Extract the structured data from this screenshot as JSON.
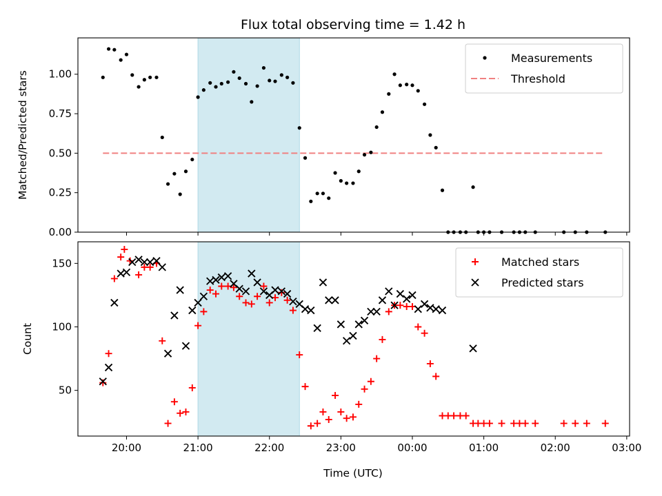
{
  "figure": {
    "title": "Flux total observing time = 1.42 h",
    "xlabel": "Time (UTC)"
  },
  "colors": {
    "shade": "#add8e6",
    "measurement": "#000000",
    "threshold": "#f08080",
    "matched": "#ff0000",
    "predicted": "#000000"
  },
  "chart_data": [
    {
      "type": "scatter",
      "ylabel": "Matched/Predicted stars",
      "x_unit": "hours since 19:00 UTC",
      "xlim": [
        0.32,
        8.04
      ],
      "ylim": [
        0.0,
        1.23
      ],
      "yticks": [
        0.0,
        0.25,
        0.5,
        0.75,
        1.0
      ],
      "ytick_labels": [
        "0.00",
        "0.25",
        "0.50",
        "0.75",
        "1.00"
      ],
      "shaded_span": [
        "21:00",
        "22:25"
      ],
      "shaded_span_hours": [
        2.0,
        3.42
      ],
      "legend": {
        "position": "upper right",
        "entries": [
          "Measurements",
          "Threshold"
        ]
      },
      "threshold": {
        "name": "Threshold",
        "y": 0.5,
        "x_range": [
          0.67,
          7.67
        ]
      },
      "series": [
        {
          "name": "Measurements",
          "points": [
            [
              0.67,
              0.98
            ],
            [
              0.75,
              1.16
            ],
            [
              0.83,
              1.155
            ],
            [
              0.92,
              1.09
            ],
            [
              1.0,
              1.125
            ],
            [
              1.08,
              0.995
            ],
            [
              1.17,
              0.92
            ],
            [
              1.25,
              0.965
            ],
            [
              1.33,
              0.98
            ],
            [
              1.42,
              0.98
            ],
            [
              1.5,
              0.6
            ],
            [
              1.58,
              0.305
            ],
            [
              1.67,
              0.37
            ],
            [
              1.75,
              0.24
            ],
            [
              1.83,
              0.385
            ],
            [
              1.92,
              0.46
            ],
            [
              2.0,
              0.855
            ],
            [
              2.08,
              0.9
            ],
            [
              2.17,
              0.945
            ],
            [
              2.25,
              0.92
            ],
            [
              2.33,
              0.94
            ],
            [
              2.42,
              0.95
            ],
            [
              2.5,
              1.015
            ],
            [
              2.58,
              0.975
            ],
            [
              2.67,
              0.94
            ],
            [
              2.75,
              0.825
            ],
            [
              2.83,
              0.925
            ],
            [
              2.92,
              1.04
            ],
            [
              3.0,
              0.96
            ],
            [
              3.08,
              0.955
            ],
            [
              3.17,
              0.995
            ],
            [
              3.25,
              0.98
            ],
            [
              3.33,
              0.945
            ],
            [
              3.42,
              0.66
            ],
            [
              3.5,
              0.47
            ],
            [
              3.58,
              0.195
            ],
            [
              3.67,
              0.245
            ],
            [
              3.75,
              0.245
            ],
            [
              3.83,
              0.215
            ],
            [
              3.92,
              0.375
            ],
            [
              4.0,
              0.325
            ],
            [
              4.08,
              0.31
            ],
            [
              4.17,
              0.31
            ],
            [
              4.25,
              0.385
            ],
            [
              4.33,
              0.49
            ],
            [
              4.42,
              0.505
            ],
            [
              4.5,
              0.665
            ],
            [
              4.58,
              0.76
            ],
            [
              4.67,
              0.875
            ],
            [
              4.75,
              1.0
            ],
            [
              4.83,
              0.93
            ],
            [
              4.92,
              0.935
            ],
            [
              5.0,
              0.93
            ],
            [
              5.08,
              0.895
            ],
            [
              5.17,
              0.81
            ],
            [
              5.25,
              0.615
            ],
            [
              5.33,
              0.535
            ],
            [
              5.42,
              0.265
            ],
            [
              5.5,
              0.0
            ],
            [
              5.58,
              0.0
            ],
            [
              5.67,
              0.0
            ],
            [
              5.75,
              0.0
            ],
            [
              5.85,
              0.285
            ],
            [
              5.92,
              0.0
            ],
            [
              6.0,
              0.0
            ],
            [
              6.08,
              0.0
            ],
            [
              6.25,
              0.0
            ],
            [
              6.42,
              0.0
            ],
            [
              6.5,
              0.0
            ],
            [
              6.58,
              0.0
            ],
            [
              6.72,
              0.0
            ],
            [
              7.12,
              0.0
            ],
            [
              7.28,
              0.0
            ],
            [
              7.44,
              0.0
            ],
            [
              7.7,
              0.0
            ]
          ]
        }
      ]
    },
    {
      "type": "scatter",
      "ylabel": "Count",
      "xlabel": "Time (UTC)",
      "x_unit": "hours since 19:00 UTC",
      "xlim": [
        0.32,
        8.04
      ],
      "ylim": [
        14,
        167
      ],
      "yticks": [
        50,
        100,
        150
      ],
      "ytick_labels": [
        "50",
        "100",
        "150"
      ],
      "xticks": [
        1,
        2,
        3,
        4,
        5,
        6,
        7,
        8
      ],
      "xtick_labels": [
        "20:00",
        "21:00",
        "22:00",
        "23:00",
        "00:00",
        "01:00",
        "02:00",
        "03:00"
      ],
      "shaded_span": [
        "21:00",
        "22:25"
      ],
      "shaded_span_hours": [
        2.0,
        3.42
      ],
      "legend": {
        "position": "upper right",
        "entries": [
          "Matched stars",
          "Predicted stars"
        ]
      },
      "series": [
        {
          "name": "Matched stars",
          "marker": "+",
          "points": [
            [
              0.67,
              56
            ],
            [
              0.75,
              79
            ],
            [
              0.83,
              138
            ],
            [
              0.92,
              155
            ],
            [
              0.97,
              161
            ],
            [
              1.05,
              152
            ],
            [
              1.17,
              141
            ],
            [
              1.25,
              147
            ],
            [
              1.33,
              147
            ],
            [
              1.42,
              150
            ],
            [
              1.5,
              89
            ],
            [
              1.58,
              24
            ],
            [
              1.67,
              41
            ],
            [
              1.75,
              32
            ],
            [
              1.83,
              33
            ],
            [
              1.92,
              52
            ],
            [
              2.0,
              101
            ],
            [
              2.08,
              112
            ],
            [
              2.17,
              129
            ],
            [
              2.25,
              126
            ],
            [
              2.33,
              132
            ],
            [
              2.42,
              132
            ],
            [
              2.5,
              131
            ],
            [
              2.58,
              124
            ],
            [
              2.67,
              119
            ],
            [
              2.75,
              118
            ],
            [
              2.83,
              124
            ],
            [
              2.92,
              132
            ],
            [
              3.0,
              119
            ],
            [
              3.08,
              123
            ],
            [
              3.17,
              127
            ],
            [
              3.25,
              121
            ],
            [
              3.33,
              113
            ],
            [
              3.42,
              78
            ],
            [
              3.5,
              53
            ],
            [
              3.58,
              22
            ],
            [
              3.67,
              24
            ],
            [
              3.75,
              33
            ],
            [
              3.83,
              27
            ],
            [
              3.92,
              46
            ],
            [
              4.0,
              33
            ],
            [
              4.08,
              28
            ],
            [
              4.17,
              29
            ],
            [
              4.25,
              39
            ],
            [
              4.33,
              51
            ],
            [
              4.42,
              57
            ],
            [
              4.5,
              75
            ],
            [
              4.58,
              90
            ],
            [
              4.67,
              112
            ],
            [
              4.75,
              117
            ],
            [
              4.83,
              117
            ],
            [
              4.92,
              116
            ],
            [
              5.0,
              116
            ],
            [
              5.08,
              100
            ],
            [
              5.17,
              95
            ],
            [
              5.25,
              71
            ],
            [
              5.33,
              61
            ],
            [
              5.42,
              30
            ],
            [
              5.5,
              30
            ],
            [
              5.58,
              30
            ],
            [
              5.67,
              30
            ],
            [
              5.75,
              30
            ],
            [
              5.85,
              24
            ],
            [
              5.92,
              24
            ],
            [
              6.0,
              24
            ],
            [
              6.08,
              24
            ],
            [
              6.25,
              24
            ],
            [
              6.42,
              24
            ],
            [
              6.5,
              24
            ],
            [
              6.58,
              24
            ],
            [
              6.72,
              24
            ],
            [
              7.12,
              24
            ],
            [
              7.28,
              24
            ],
            [
              7.44,
              24
            ],
            [
              7.7,
              24
            ]
          ]
        },
        {
          "name": "Predicted stars",
          "marker": "x",
          "points": [
            [
              0.67,
              57
            ],
            [
              0.75,
              68
            ],
            [
              0.83,
              119
            ],
            [
              0.92,
              142
            ],
            [
              1.0,
              143
            ],
            [
              1.08,
              151
            ],
            [
              1.17,
              153
            ],
            [
              1.25,
              151
            ],
            [
              1.33,
              151
            ],
            [
              1.42,
              152
            ],
            [
              1.5,
              147
            ],
            [
              1.58,
              79
            ],
            [
              1.67,
              109
            ],
            [
              1.75,
              129
            ],
            [
              1.83,
              85
            ],
            [
              1.92,
              113
            ],
            [
              2.0,
              119
            ],
            [
              2.08,
              124
            ],
            [
              2.17,
              136
            ],
            [
              2.25,
              137
            ],
            [
              2.33,
              139
            ],
            [
              2.42,
              140
            ],
            [
              2.5,
              134
            ],
            [
              2.58,
              130
            ],
            [
              2.67,
              128
            ],
            [
              2.75,
              142
            ],
            [
              2.83,
              135
            ],
            [
              2.92,
              128
            ],
            [
              3.0,
              125
            ],
            [
              3.08,
              129
            ],
            [
              3.17,
              128
            ],
            [
              3.25,
              126
            ],
            [
              3.33,
              120
            ],
            [
              3.42,
              118
            ],
            [
              3.5,
              114
            ],
            [
              3.58,
              113
            ],
            [
              3.67,
              99
            ],
            [
              3.75,
              135
            ],
            [
              3.83,
              121
            ],
            [
              3.92,
              121
            ],
            [
              4.0,
              102
            ],
            [
              4.08,
              89
            ],
            [
              4.17,
              93
            ],
            [
              4.25,
              102
            ],
            [
              4.33,
              105
            ],
            [
              4.42,
              112
            ],
            [
              4.5,
              112
            ],
            [
              4.58,
              121
            ],
            [
              4.67,
              128
            ],
            [
              4.75,
              117
            ],
            [
              4.83,
              126
            ],
            [
              4.92,
              122
            ],
            [
              5.0,
              125
            ],
            [
              5.08,
              114
            ],
            [
              5.17,
              118
            ],
            [
              5.25,
              115
            ],
            [
              5.33,
              114
            ],
            [
              5.42,
              113
            ],
            [
              5.85,
              83
            ]
          ]
        }
      ]
    }
  ]
}
